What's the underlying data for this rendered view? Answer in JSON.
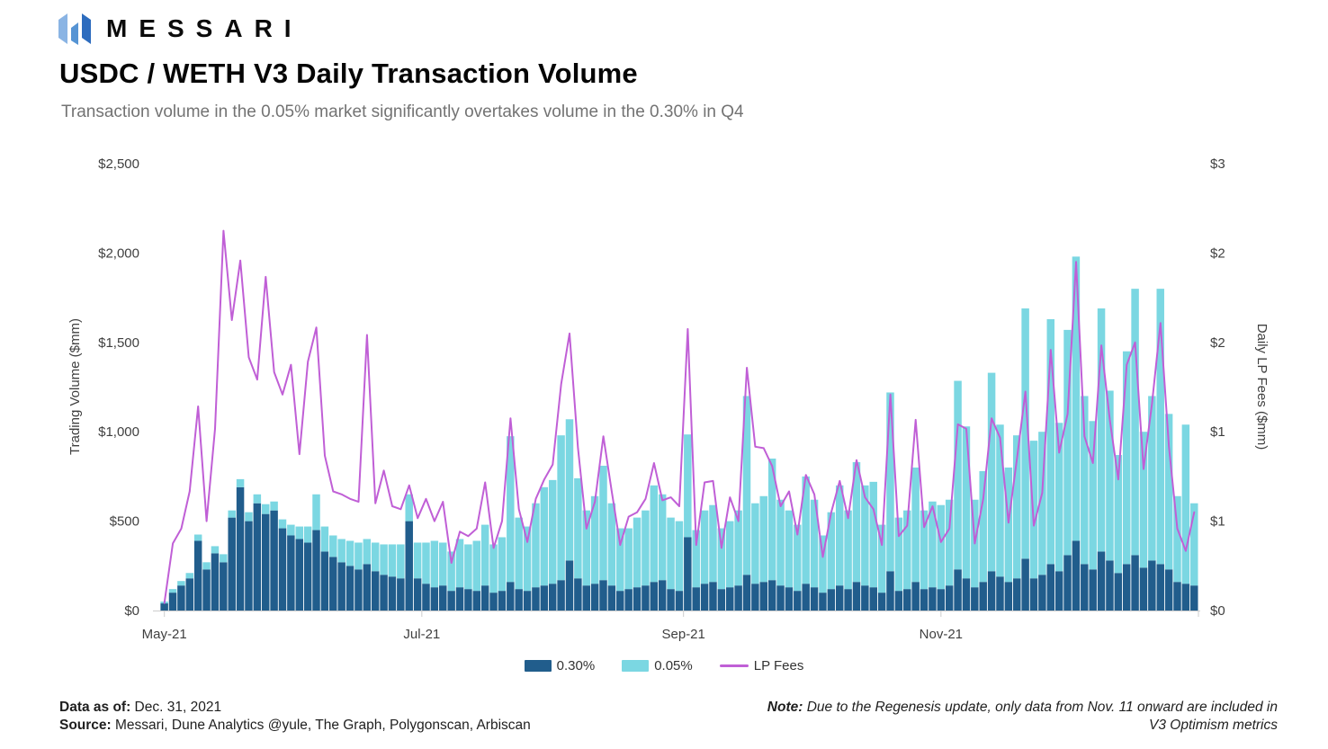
{
  "header": {
    "brand": "MESSARI",
    "logo_colors": [
      "#8ab4e4",
      "#5694d4",
      "#2d6cbe"
    ],
    "title": "USDC / WETH V3 Daily Transaction Volume",
    "subtitle": "Transaction volume in the 0.05% market significantly overtakes volume in the 0.30% in Q4"
  },
  "footer": {
    "data_as_of_label": "Data as of:",
    "data_as_of_value": " Dec. 31, 2021",
    "source_label": "Source:",
    "source_value": " Messari, Dune Analytics @yule, The Graph, Polygonscan, Arbiscan",
    "note_label": "Note:",
    "note_line1": " Due to the Regenesis update, only data from Nov. 11 onward are included in",
    "note_line2": "V3 Optimism metrics"
  },
  "chart_data": {
    "type": "stacked-bar-line",
    "title": "USDC / WETH V3 Daily Transaction Volume",
    "grid": false,
    "legend_position": "bottom-center",
    "background": "#ffffff",
    "axis_color": "#cccccc",
    "text_color": "#3f3f3f",
    "x": {
      "categories": [
        "2021-05-01",
        "2021-05-03",
        "2021-05-05",
        "2021-05-07",
        "2021-05-09",
        "2021-05-11",
        "2021-05-13",
        "2021-05-15",
        "2021-05-17",
        "2021-05-19",
        "2021-05-21",
        "2021-05-23",
        "2021-05-25",
        "2021-05-27",
        "2021-05-29",
        "2021-05-31",
        "2021-06-02",
        "2021-06-04",
        "2021-06-06",
        "2021-06-08",
        "2021-06-10",
        "2021-06-12",
        "2021-06-14",
        "2021-06-16",
        "2021-06-18",
        "2021-06-20",
        "2021-06-22",
        "2021-06-24",
        "2021-06-26",
        "2021-06-28",
        "2021-06-30",
        "2021-07-02",
        "2021-07-04",
        "2021-07-06",
        "2021-07-08",
        "2021-07-10",
        "2021-07-12",
        "2021-07-14",
        "2021-07-16",
        "2021-07-18",
        "2021-07-20",
        "2021-07-22",
        "2021-07-24",
        "2021-07-26",
        "2021-07-28",
        "2021-07-30",
        "2021-08-01",
        "2021-08-03",
        "2021-08-05",
        "2021-08-07",
        "2021-08-09",
        "2021-08-11",
        "2021-08-13",
        "2021-08-15",
        "2021-08-17",
        "2021-08-19",
        "2021-08-21",
        "2021-08-23",
        "2021-08-25",
        "2021-08-27",
        "2021-08-29",
        "2021-08-31",
        "2021-09-02",
        "2021-09-04",
        "2021-09-06",
        "2021-09-08",
        "2021-09-10",
        "2021-09-12",
        "2021-09-14",
        "2021-09-16",
        "2021-09-18",
        "2021-09-20",
        "2021-09-22",
        "2021-09-24",
        "2021-09-26",
        "2021-09-28",
        "2021-09-30",
        "2021-10-02",
        "2021-10-04",
        "2021-10-06",
        "2021-10-08",
        "2021-10-10",
        "2021-10-12",
        "2021-10-14",
        "2021-10-16",
        "2021-10-18",
        "2021-10-20",
        "2021-10-22",
        "2021-10-24",
        "2021-10-26",
        "2021-10-28",
        "2021-10-30",
        "2021-11-01",
        "2021-11-03",
        "2021-11-05",
        "2021-11-07",
        "2021-11-09",
        "2021-11-11",
        "2021-11-13",
        "2021-11-15",
        "2021-11-17",
        "2021-11-19",
        "2021-11-21",
        "2021-11-23",
        "2021-11-25",
        "2021-11-27",
        "2021-11-29",
        "2021-12-01",
        "2021-12-03",
        "2021-12-05",
        "2021-12-07",
        "2021-12-09",
        "2021-12-11",
        "2021-12-13",
        "2021-12-15",
        "2021-12-17",
        "2021-12-19",
        "2021-12-21",
        "2021-12-23",
        "2021-12-25",
        "2021-12-27",
        "2021-12-29",
        "2021-12-31"
      ],
      "tick_labels": [
        {
          "label": "May-21",
          "i": 0
        },
        {
          "label": "Jul-21",
          "i": 30.5
        },
        {
          "label": "Sep-21",
          "i": 61.5
        },
        {
          "label": "Nov-21",
          "i": 92
        }
      ]
    },
    "y_left": {
      "label": "Trading Volume ($mm)",
      "ticks": [
        "$0",
        "$500",
        "$1,000",
        "$1,500",
        "$2,000",
        "$2,500"
      ],
      "min": 0,
      "max": 2500
    },
    "y_right": {
      "label": "Daily LP Fees ($mm)",
      "ticks": [
        "$0",
        "$1",
        "$1",
        "$2",
        "$2",
        "$3"
      ],
      "min": 0,
      "max": 3
    },
    "series": [
      {
        "name": "0.30%",
        "type": "bar",
        "stack": "volume",
        "axis": "left",
        "color": "#215d8c",
        "values": [
          40,
          100,
          140,
          180,
          390,
          230,
          320,
          270,
          520,
          690,
          500,
          600,
          540,
          560,
          460,
          420,
          400,
          380,
          450,
          330,
          300,
          270,
          250,
          230,
          260,
          220,
          200,
          190,
          180,
          500,
          180,
          150,
          130,
          140,
          110,
          130,
          120,
          110,
          140,
          100,
          110,
          160,
          120,
          110,
          130,
          140,
          150,
          170,
          280,
          180,
          140,
          150,
          170,
          140,
          110,
          120,
          130,
          140,
          160,
          170,
          120,
          110,
          410,
          130,
          150,
          160,
          120,
          130,
          140,
          200,
          150,
          160,
          170,
          140,
          130,
          110,
          150,
          130,
          100,
          120,
          140,
          120,
          160,
          140,
          130,
          100,
          220,
          110,
          120,
          160,
          120,
          130,
          120,
          140,
          230,
          180,
          130,
          160,
          220,
          190,
          160,
          180,
          290,
          180,
          200,
          260,
          220,
          310,
          390,
          260,
          230,
          330,
          280,
          210,
          260,
          310,
          240,
          280,
          260,
          230,
          160,
          150,
          140
        ]
      },
      {
        "name": "0.05%",
        "type": "bar",
        "stack": "volume",
        "axis": "left",
        "color": "#7bd7e2",
        "values": [
          10,
          20,
          25,
          30,
          35,
          40,
          40,
          45,
          40,
          45,
          50,
          50,
          55,
          50,
          50,
          60,
          70,
          90,
          200,
          140,
          120,
          130,
          140,
          150,
          140,
          160,
          170,
          180,
          190,
          150,
          200,
          230,
          260,
          240,
          220,
          270,
          250,
          280,
          340,
          270,
          300,
          815,
          400,
          360,
          470,
          550,
          580,
          810,
          790,
          560,
          420,
          490,
          640,
          460,
          350,
          340,
          390,
          420,
          540,
          480,
          400,
          390,
          575,
          320,
          410,
          430,
          340,
          370,
          420,
          1000,
          450,
          480,
          680,
          480,
          430,
          370,
          600,
          490,
          320,
          430,
          560,
          440,
          670,
          560,
          590,
          380,
          1000,
          410,
          440,
          640,
          440,
          480,
          470,
          480,
          1055,
          850,
          490,
          620,
          1110,
          850,
          640,
          800,
          1400,
          770,
          800,
          1370,
          830,
          1260,
          1590,
          940,
          830,
          1360,
          950,
          660,
          1190,
          1490,
          760,
          920,
          1540,
          870,
          480,
          890,
          460
        ]
      },
      {
        "name": "LP Fees",
        "type": "line",
        "axis": "right",
        "color": "#c05fd6",
        "values": [
          0.05,
          0.45,
          0.55,
          0.8,
          1.37,
          0.6,
          1.22,
          2.55,
          1.95,
          2.35,
          1.7,
          1.55,
          2.24,
          1.6,
          1.45,
          1.65,
          1.05,
          1.67,
          1.9,
          1.04,
          0.8,
          0.78,
          0.75,
          0.73,
          1.85,
          0.72,
          0.94,
          0.7,
          0.68,
          0.84,
          0.62,
          0.75,
          0.6,
          0.73,
          0.32,
          0.53,
          0.5,
          0.55,
          0.86,
          0.42,
          0.6,
          1.29,
          0.68,
          0.46,
          0.75,
          0.88,
          0.98,
          1.52,
          1.86,
          1.09,
          0.55,
          0.73,
          1.17,
          0.8,
          0.44,
          0.63,
          0.66,
          0.75,
          0.99,
          0.74,
          0.76,
          0.7,
          1.89,
          0.44,
          0.86,
          0.87,
          0.42,
          0.76,
          0.6,
          1.63,
          1.1,
          1.09,
          0.97,
          0.7,
          0.8,
          0.51,
          0.91,
          0.78,
          0.36,
          0.66,
          0.87,
          0.62,
          1.01,
          0.76,
          0.68,
          0.44,
          1.45,
          0.5,
          0.57,
          1.28,
          0.56,
          0.7,
          0.46,
          0.55,
          1.25,
          1.22,
          0.45,
          0.75,
          1.29,
          1.16,
          0.59,
          1.02,
          1.47,
          0.57,
          0.79,
          1.75,
          1.06,
          1.32,
          2.34,
          1.17,
          0.99,
          1.78,
          1.28,
          0.88,
          1.65,
          1.8,
          0.95,
          1.39,
          1.93,
          1.1,
          0.55,
          0.4,
          0.66
        ]
      }
    ]
  }
}
